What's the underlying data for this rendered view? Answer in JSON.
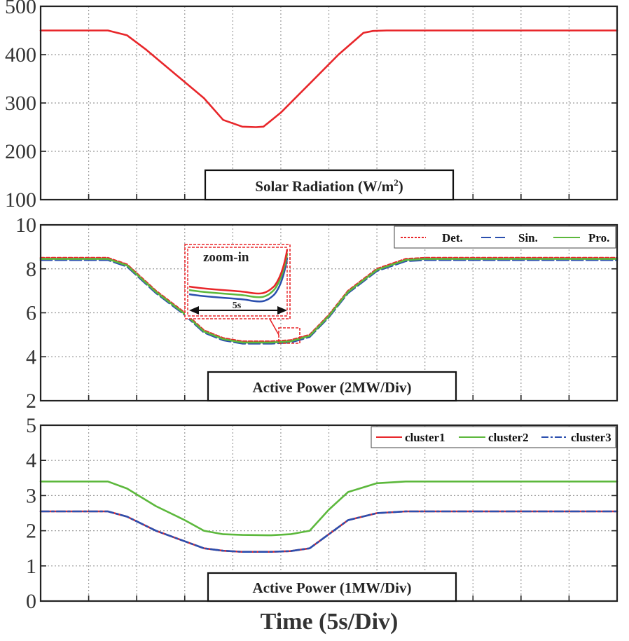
{
  "chart_data": [
    {
      "type": "line",
      "ylim": [
        100,
        500
      ],
      "yticks": [
        "100",
        "200",
        "300",
        "400",
        "500"
      ],
      "grid": true,
      "label": "Solar Radiation (W/m",
      "label_sup": "2",
      "label_close": ")",
      "series": [
        {
          "name": "radiation",
          "color": "#e8262a",
          "dash": "",
          "x": [
            0,
            3.5,
            4.5,
            5.5,
            7.0,
            8.5,
            9.5,
            10.5,
            11.2,
            11.6,
            12.5,
            14,
            15.5,
            16.8,
            17.3,
            18,
            19,
            20,
            30
          ],
          "y": [
            450,
            450,
            440,
            410,
            360,
            310,
            265,
            251,
            250,
            251,
            280,
            340,
            400,
            445,
            449,
            450,
            450,
            450,
            450
          ]
        }
      ]
    },
    {
      "type": "line",
      "ylim": [
        2,
        10
      ],
      "yticks": [
        "2",
        "4",
        "6",
        "8",
        "10"
      ],
      "grid": true,
      "label": "Active Power (2MW/Div)",
      "legend": {
        "position": "top-right",
        "entries": [
          "Det.",
          "Sin.",
          "Pro."
        ]
      },
      "inset": {
        "title": "zoom-in",
        "span_label": "5s"
      },
      "series": [
        {
          "name": "Det.",
          "color": "#e8262a",
          "dash": "5,3",
          "x": [
            0,
            3.5,
            4.5,
            6,
            7.5,
            8.5,
            9.5,
            10.5,
            12,
            13,
            14,
            15,
            16,
            17.5,
            19,
            20,
            30
          ],
          "y": [
            8.5,
            8.5,
            8.2,
            7.0,
            6.0,
            5.2,
            4.85,
            4.7,
            4.7,
            4.75,
            5.0,
            5.9,
            7.0,
            8.0,
            8.45,
            8.5,
            8.5
          ]
        },
        {
          "name": "Sin.",
          "color": "#2b4fae",
          "dash": "16,5",
          "x": [
            0,
            3.5,
            4.5,
            6,
            7.5,
            8.5,
            9.5,
            10.5,
            12,
            13,
            14,
            15,
            16,
            17.5,
            19,
            20,
            30
          ],
          "y": [
            8.4,
            8.4,
            8.1,
            6.9,
            5.9,
            5.1,
            4.75,
            4.6,
            4.6,
            4.65,
            4.9,
            5.8,
            6.9,
            7.9,
            8.35,
            8.4,
            8.4
          ]
        },
        {
          "name": "Pro.",
          "color": "#5cb83c",
          "dash": "",
          "x": [
            0,
            3.5,
            4.5,
            6,
            7.5,
            8.5,
            9.5,
            10.5,
            12,
            13,
            14,
            15,
            16,
            17.5,
            19,
            20,
            30
          ],
          "y": [
            8.45,
            8.45,
            8.15,
            6.95,
            5.95,
            5.15,
            4.8,
            4.65,
            4.65,
            4.7,
            4.95,
            5.85,
            6.95,
            7.95,
            8.4,
            8.45,
            8.45
          ]
        }
      ]
    },
    {
      "type": "line",
      "ylim": [
        0,
        5
      ],
      "yticks": [
        "0",
        "1",
        "2",
        "3",
        "4",
        "5"
      ],
      "grid": true,
      "label": "Active Power (1MW/Div)",
      "legend": {
        "position": "top-right",
        "entries": [
          "cluster1",
          "cluster2",
          "cluster3"
        ]
      },
      "series": [
        {
          "name": "cluster1",
          "color": "#e8262a",
          "dash": "",
          "x": [
            0,
            3.5,
            4.5,
            6,
            7.5,
            8.5,
            9.5,
            10.5,
            12,
            13,
            14,
            15,
            16,
            17.5,
            19,
            20,
            30
          ],
          "y": [
            2.55,
            2.55,
            2.4,
            2.0,
            1.7,
            1.5,
            1.43,
            1.4,
            1.4,
            1.42,
            1.5,
            1.9,
            2.3,
            2.5,
            2.55,
            2.55,
            2.55
          ]
        },
        {
          "name": "cluster2",
          "color": "#5cb83c",
          "dash": "",
          "x": [
            0,
            3.5,
            4.5,
            6,
            7.5,
            8.5,
            9.5,
            10.5,
            12,
            13,
            14,
            15,
            16,
            17.5,
            19,
            20,
            30
          ],
          "y": [
            3.4,
            3.4,
            3.2,
            2.7,
            2.3,
            2.0,
            1.9,
            1.88,
            1.87,
            1.9,
            2.0,
            2.6,
            3.1,
            3.35,
            3.4,
            3.4,
            3.4
          ]
        },
        {
          "name": "cluster3",
          "color": "#2b4fae",
          "dash": "12,4,3,4",
          "x": [
            0,
            3.5,
            4.5,
            6,
            7.5,
            8.5,
            9.5,
            10.5,
            12,
            13,
            14,
            15,
            16,
            17.5,
            19,
            20,
            30
          ],
          "y": [
            2.55,
            2.55,
            2.4,
            2.0,
            1.7,
            1.5,
            1.43,
            1.4,
            1.4,
            1.42,
            1.5,
            1.9,
            2.3,
            2.5,
            2.55,
            2.55,
            2.55
          ]
        }
      ]
    }
  ],
  "xlabel": "Time (5s/Div)"
}
